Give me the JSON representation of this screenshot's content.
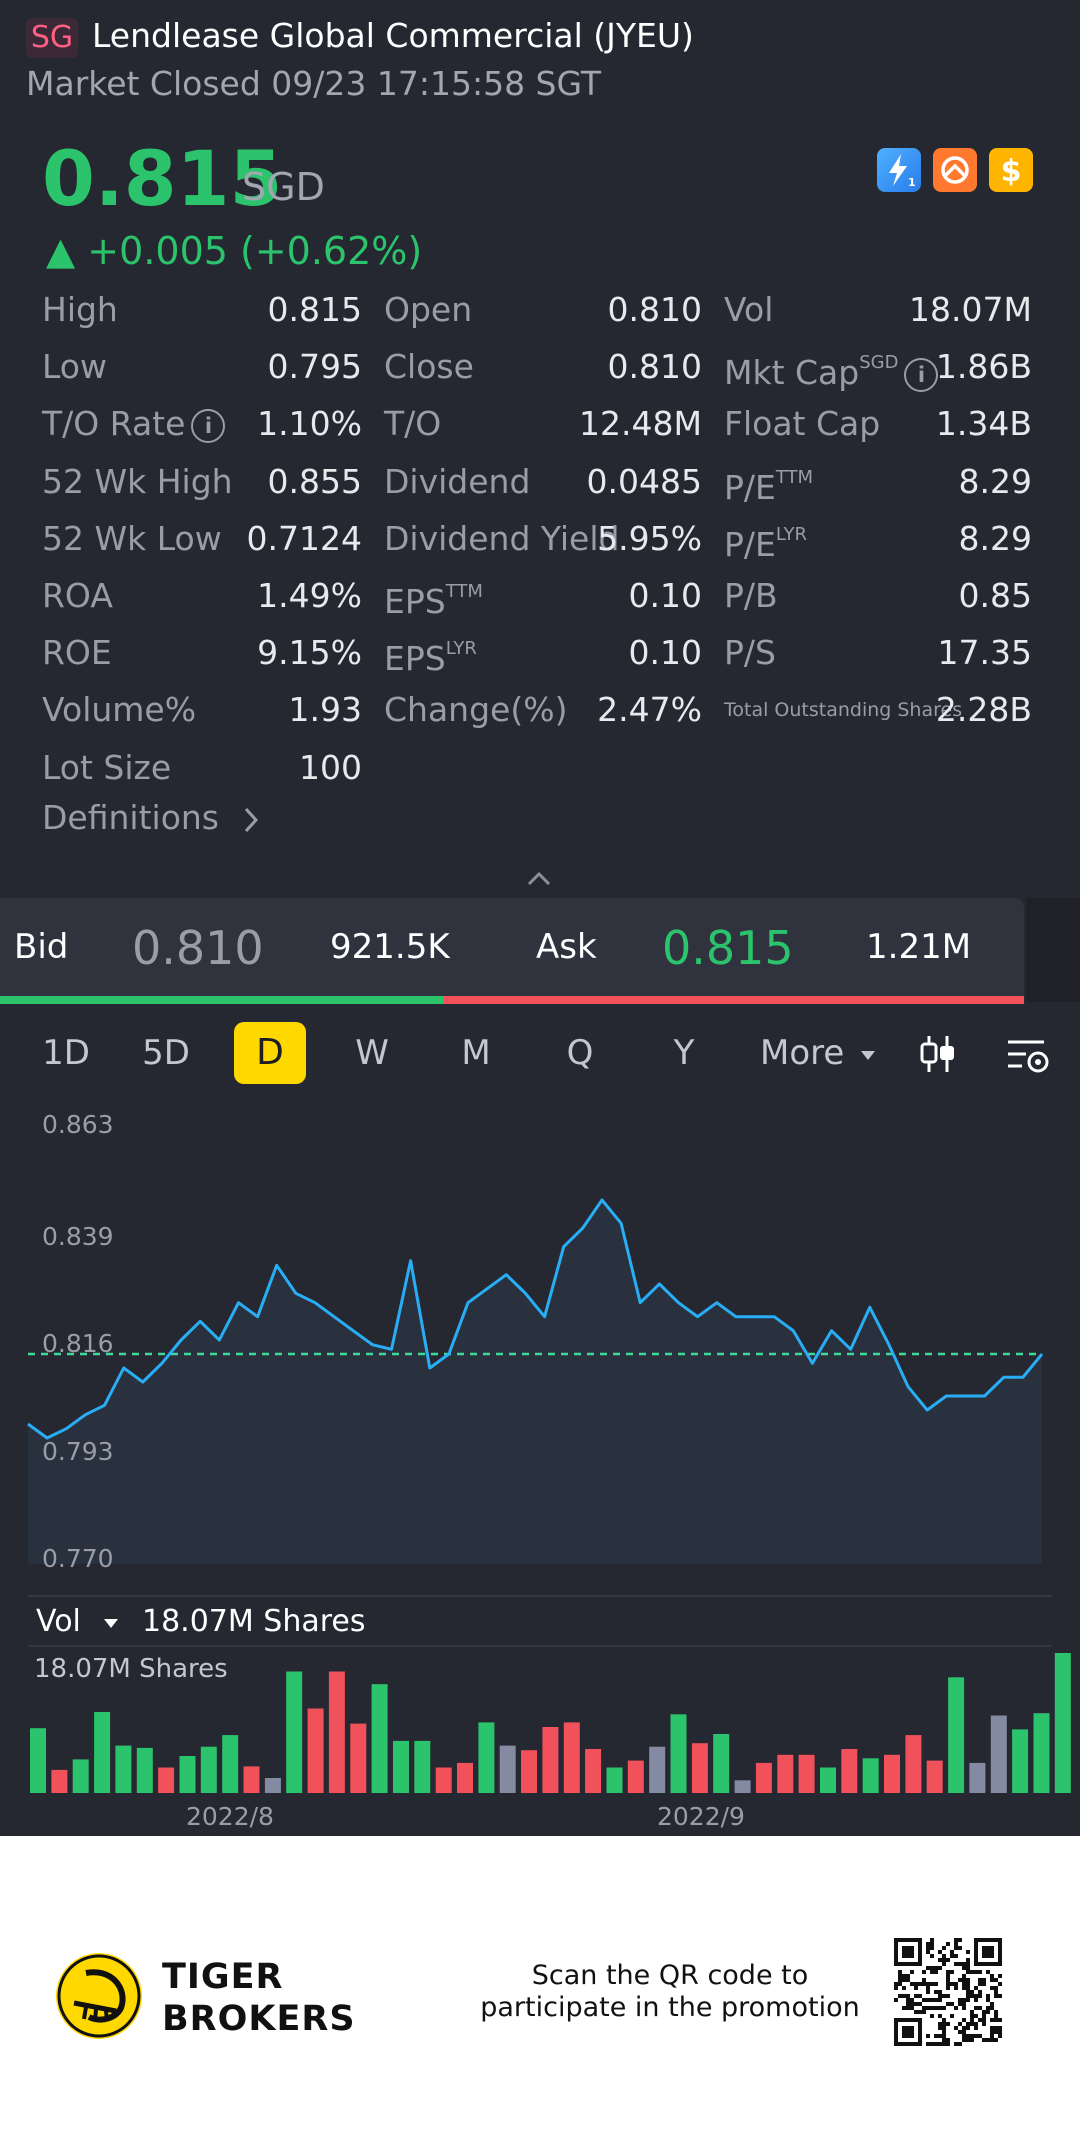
{
  "header": {
    "market_badge": "SG",
    "title": "Lendlease Global Commercial  (JYEU)",
    "status": "Market Closed 09/23 17:15:58 SGT"
  },
  "quote": {
    "price": "0.815",
    "currency": "SGD",
    "change": "▲ +0.005 (+0.62%)",
    "up_color": "#2bc46c",
    "down_color": "#f0515b"
  },
  "service_icons": [
    "lightning-1-icon",
    "options-wheel-icon",
    "dollar-icon"
  ],
  "stats": {
    "col1": [
      {
        "label": "High",
        "value": "0.815"
      },
      {
        "label": "Low",
        "value": "0.795"
      },
      {
        "label": "T/O Rate",
        "value": "1.10%",
        "info": true
      },
      {
        "label": "52 Wk High",
        "value": "0.855"
      },
      {
        "label": "52 Wk Low",
        "value": "0.7124"
      },
      {
        "label": "ROA",
        "value": "1.49%"
      },
      {
        "label": "ROE",
        "value": "9.15%"
      },
      {
        "label": "Volume%",
        "value": "1.93"
      },
      {
        "label": "Lot Size",
        "value": "100"
      }
    ],
    "col2": [
      {
        "label": "Open",
        "value": "0.810"
      },
      {
        "label": "Close",
        "value": "0.810"
      },
      {
        "label": "T/O",
        "value": "12.48M"
      },
      {
        "label": "Dividend",
        "value": "0.0485"
      },
      {
        "label": "Dividend Yield",
        "value": "5.95%"
      },
      {
        "label": "EPS",
        "sup": "TTM",
        "value": "0.10"
      },
      {
        "label": "EPS",
        "sup": "LYR",
        "value": "0.10"
      },
      {
        "label": "Change(%)",
        "value": "2.47%"
      }
    ],
    "col3": [
      {
        "label": "Vol",
        "value": "18.07M"
      },
      {
        "label": "Mkt Cap",
        "sup": "SGD",
        "info": true,
        "value": "1.86B"
      },
      {
        "label": "Float Cap",
        "value": "1.34B"
      },
      {
        "label": "P/E",
        "sup": "TTM",
        "value": "8.29"
      },
      {
        "label": "P/E",
        "sup": "LYR",
        "value": "8.29"
      },
      {
        "label": "P/B",
        "value": "0.85"
      },
      {
        "label": "P/S",
        "value": "17.35"
      },
      {
        "label": "Total Outstanding Shares",
        "small": true,
        "value": "2.28B"
      }
    ],
    "definitions": "Definitions"
  },
  "bidask": {
    "bid_label": "Bid",
    "bid_price": "0.810",
    "bid_size": "921.5K",
    "ask_label": "Ask",
    "ask_price": "0.815",
    "ask_size": "1.21M",
    "bid_ratio": 0.434
  },
  "tabs": {
    "items": [
      "1D",
      "5D",
      "D",
      "W",
      "M",
      "Q",
      "Y"
    ],
    "active": "D",
    "more": "More"
  },
  "chart_data": [
    {
      "type": "area",
      "y_ticks": [
        "0.863",
        "0.839",
        "0.816",
        "0.793",
        "0.770"
      ],
      "ylim": [
        0.77,
        0.863
      ],
      "reference_line": 0.815,
      "values": [
        0.8,
        0.797,
        0.799,
        0.802,
        0.804,
        0.812,
        0.809,
        0.813,
        0.818,
        0.822,
        0.818,
        0.826,
        0.823,
        0.834,
        0.828,
        0.826,
        0.823,
        0.82,
        0.817,
        0.816,
        0.835,
        0.812,
        0.815,
        0.826,
        0.829,
        0.832,
        0.828,
        0.823,
        0.838,
        0.842,
        0.848,
        0.843,
        0.826,
        0.83,
        0.826,
        0.823,
        0.826,
        0.823,
        0.823,
        0.823,
        0.82,
        0.813,
        0.82,
        0.816,
        0.825,
        0.817,
        0.808,
        0.803,
        0.806,
        0.806,
        0.806,
        0.81,
        0.81,
        0.815
      ]
    },
    {
      "type": "bar",
      "title": "Vol",
      "total": "18.07M Shares",
      "label": "18.07M Shares",
      "x_labels": [
        "2022/8",
        "2022/9"
      ],
      "values": [
        5.6,
        2.0,
        2.9,
        7.0,
        4.1,
        3.9,
        2.2,
        3.2,
        4.0,
        5.0,
        2.3,
        1.3,
        10.5,
        7.3,
        10.5,
        6.0,
        9.4,
        4.5,
        4.5,
        2.2,
        2.6,
        6.1,
        4.1,
        3.7,
        5.7,
        6.1,
        3.8,
        2.2,
        2.8,
        4.0,
        6.8,
        4.3,
        5.1,
        1.1,
        2.6,
        3.3,
        3.3,
        2.2,
        3.8,
        3.0,
        3.3,
        5.0,
        2.8,
        10.0,
        2.6,
        6.7,
        5.5,
        6.9,
        12.1
      ],
      "colors": [
        "g",
        "r",
        "g",
        "g",
        "g",
        "g",
        "r",
        "g",
        "g",
        "g",
        "r",
        "x",
        "g",
        "r",
        "r",
        "r",
        "g",
        "g",
        "g",
        "r",
        "r",
        "g",
        "x",
        "r",
        "r",
        "r",
        "r",
        "g",
        "r",
        "x",
        "g",
        "r",
        "g",
        "x",
        "r",
        "r",
        "r",
        "g",
        "r",
        "g",
        "r",
        "r",
        "r",
        "g",
        "x",
        "x",
        "g",
        "g",
        "g"
      ],
      "color_map": {
        "g": "#2bc46c",
        "r": "#f0515b",
        "x": "#858aa3"
      }
    }
  ],
  "footer": {
    "brand_line1": "TIGER",
    "brand_line2": "BROKERS",
    "promo_line1": "Scan the QR code to",
    "promo_line2": "participate in the promotion"
  }
}
